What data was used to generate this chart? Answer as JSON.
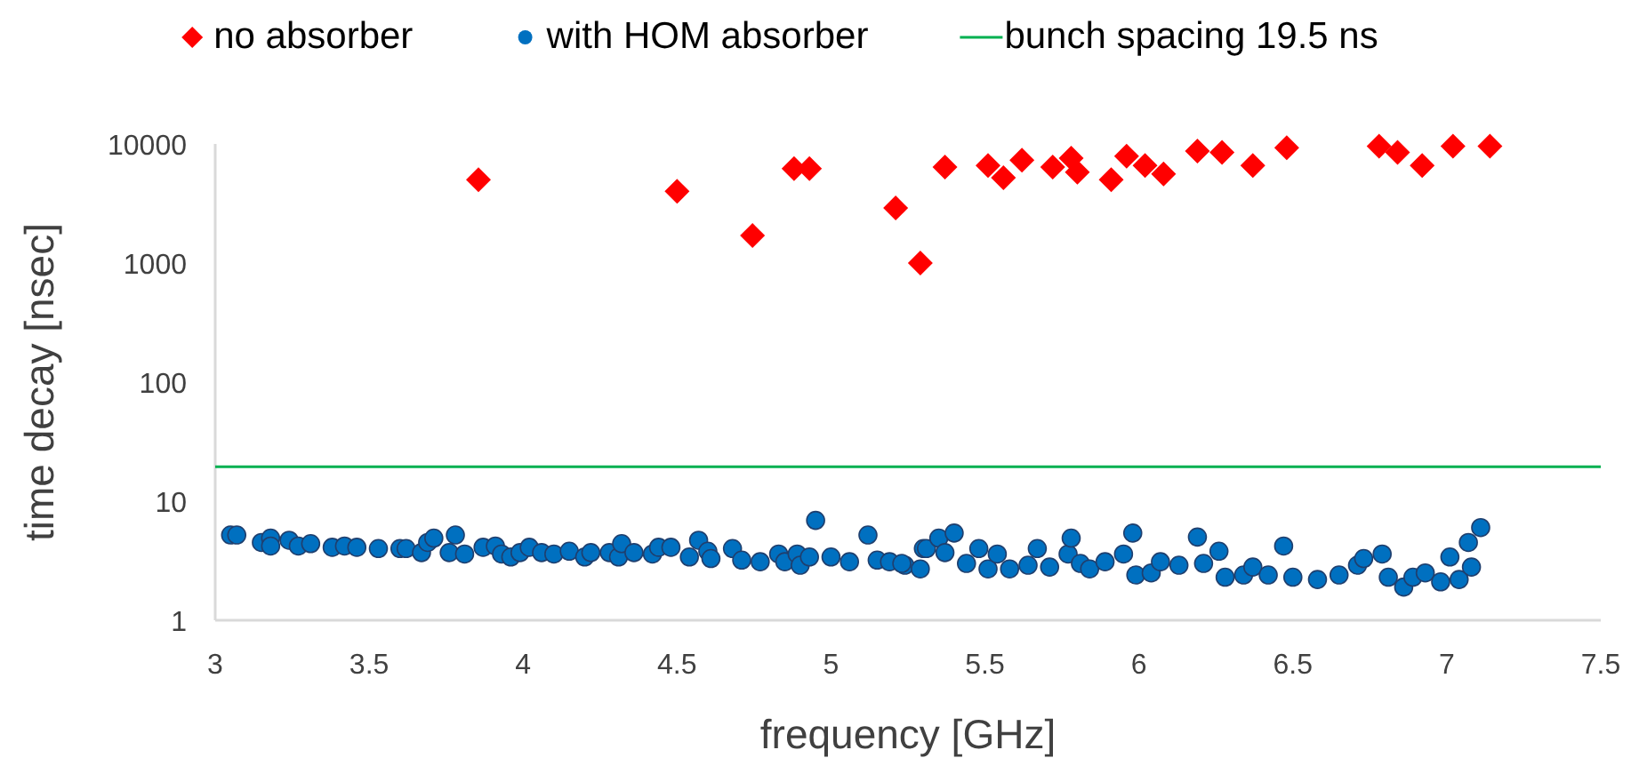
{
  "chart_data": {
    "type": "scatter",
    "xlabel": "frequency [GHz]",
    "ylabel": "time decay [nsec]",
    "log": "y",
    "grid": false,
    "legend": "top",
    "xlim": [
      3,
      7.5
    ],
    "xticks": [
      3,
      3.5,
      4,
      4.5,
      5,
      5.5,
      6,
      6.5,
      7,
      7.5
    ],
    "ylim": [
      1,
      10000
    ],
    "yticks": [
      1,
      10,
      100,
      1000,
      10000
    ],
    "series": [
      {
        "name": "no absorber",
        "color": "#ff0000",
        "marker": "diamond",
        "x": [
          3.855,
          4.5,
          4.745,
          4.88,
          4.93,
          5.21,
          5.29,
          5.37,
          5.51,
          5.56,
          5.62,
          5.72,
          5.78,
          5.8,
          5.91,
          5.96,
          6.02,
          6.08,
          6.19,
          6.27,
          6.37,
          6.48,
          6.78,
          6.84,
          6.92,
          7.02,
          7.14
        ],
        "values": [
          5000,
          4000,
          1700,
          6200,
          6200,
          2900,
          1000,
          6400,
          6600,
          5200,
          7300,
          6400,
          7600,
          5800,
          5000,
          7900,
          6600,
          5600,
          8700,
          8500,
          6600,
          9300,
          9600,
          8500,
          6600,
          9600,
          9600
        ]
      },
      {
        "name": "with HOM absorber",
        "color": "#0070c0",
        "marker": "circle",
        "x": [
          3.05,
          3.07,
          3.15,
          3.18,
          3.18,
          3.24,
          3.27,
          3.31,
          3.38,
          3.42,
          3.46,
          3.53,
          3.6,
          3.62,
          3.67,
          3.69,
          3.71,
          3.76,
          3.78,
          3.81,
          3.87,
          3.91,
          3.93,
          3.96,
          3.99,
          4.02,
          4.06,
          4.1,
          4.15,
          4.2,
          4.22,
          4.28,
          4.31,
          4.32,
          4.36,
          4.42,
          4.44,
          4.48,
          4.54,
          4.57,
          4.6,
          4.61,
          4.68,
          4.71,
          4.77,
          4.83,
          4.85,
          4.89,
          4.9,
          4.93,
          4.95,
          5.0,
          5.06,
          5.12,
          5.15,
          5.19,
          5.24,
          5.29,
          5.3,
          5.23,
          5.31,
          5.35,
          5.37,
          5.4,
          5.44,
          5.48,
          5.51,
          5.54,
          5.58,
          5.64,
          5.67,
          5.71,
          5.77,
          5.78,
          5.81,
          5.84,
          5.89,
          5.95,
          5.98,
          5.99,
          6.04,
          6.07,
          6.13,
          6.19,
          6.21,
          6.26,
          6.28,
          6.34,
          6.37,
          6.42,
          6.47,
          6.5,
          6.58,
          6.65,
          6.71,
          6.73,
          6.79,
          6.81,
          6.86,
          6.89,
          6.93,
          6.98,
          7.01,
          7.04,
          7.07,
          7.08,
          7.11
        ],
        "values": [
          5.2,
          5.2,
          4.5,
          4.9,
          4.2,
          4.7,
          4.2,
          4.4,
          4.1,
          4.2,
          4.1,
          4.0,
          4.0,
          4.0,
          3.7,
          4.5,
          4.9,
          3.7,
          5.2,
          3.6,
          4.1,
          4.2,
          3.6,
          3.4,
          3.7,
          4.1,
          3.7,
          3.6,
          3.8,
          3.4,
          3.7,
          3.7,
          3.4,
          4.4,
          3.7,
          3.6,
          4.1,
          4.1,
          3.4,
          4.7,
          3.8,
          3.3,
          4.0,
          3.2,
          3.1,
          3.6,
          3.1,
          3.6,
          2.9,
          3.4,
          6.9,
          3.4,
          3.1,
          5.2,
          3.2,
          3.1,
          2.9,
          2.7,
          4.0,
          3.0,
          4.0,
          4.9,
          3.7,
          5.4,
          3.0,
          4.0,
          2.7,
          3.6,
          2.7,
          2.9,
          4.0,
          2.8,
          3.6,
          4.9,
          3.0,
          2.7,
          3.1,
          3.6,
          5.4,
          2.4,
          2.5,
          3.1,
          2.9,
          5.0,
          3.0,
          3.8,
          2.3,
          2.4,
          2.8,
          2.4,
          4.2,
          2.3,
          2.2,
          2.4,
          2.9,
          3.3,
          3.6,
          2.3,
          1.9,
          2.3,
          2.5,
          2.1,
          3.4,
          2.2,
          4.5,
          2.8,
          6.0
        ]
      }
    ],
    "ref_lines": [
      {
        "axis": "y",
        "value": 19.5,
        "label": "bunch spacing 19.5 ns",
        "color": "#00b050"
      }
    ]
  }
}
